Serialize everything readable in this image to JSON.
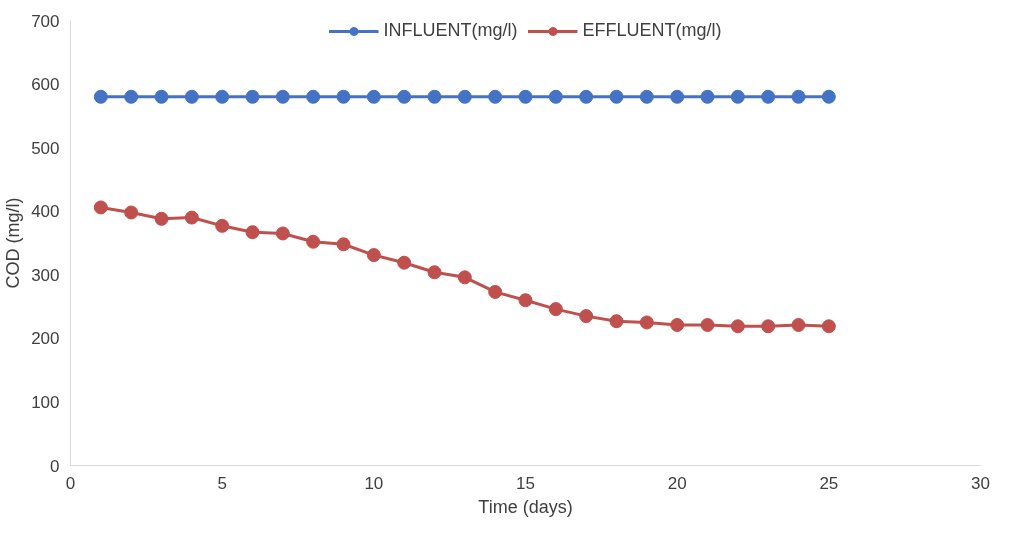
{
  "chart_data": {
    "type": "line",
    "xlabel": "Time (days)",
    "ylabel": "COD (mg/l)",
    "x": [
      1,
      2,
      3,
      4,
      5,
      6,
      7,
      8,
      9,
      10,
      11,
      12,
      13,
      14,
      15,
      16,
      17,
      18,
      19,
      20,
      21,
      22,
      23,
      24,
      25
    ],
    "series": [
      {
        "name": "INFLUENT(mg/l)",
        "color": "#4472c4",
        "values": [
          580,
          580,
          580,
          580,
          580,
          580,
          580,
          580,
          580,
          580,
          580,
          580,
          580,
          580,
          580,
          580,
          580,
          580,
          580,
          580,
          580,
          580,
          580,
          580,
          580
        ]
      },
      {
        "name": "EFFLUENT(mg/l)",
        "color": "#c0504d",
        "values": [
          406,
          398,
          388,
          390,
          377,
          367,
          365,
          352,
          348,
          331,
          319,
          304,
          296,
          273,
          260,
          246,
          235,
          227,
          225,
          221,
          221,
          219,
          219,
          221,
          219
        ]
      }
    ],
    "xlim": [
      0,
      30
    ],
    "xticks": [
      0,
      5,
      10,
      15,
      20,
      25,
      30
    ],
    "ylim": [
      0,
      700
    ],
    "yticks": [
      0,
      100,
      200,
      300,
      400,
      500,
      600,
      700
    ],
    "grid": false,
    "legend": "top",
    "marker": "circle",
    "line_style": "solid"
  }
}
